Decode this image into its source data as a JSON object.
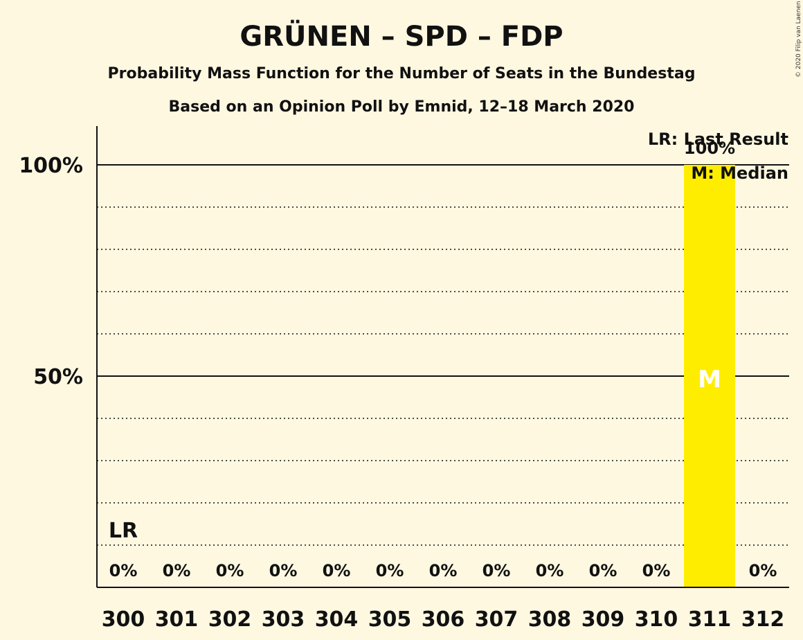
{
  "chart_data": {
    "type": "bar",
    "title": "GRÜNEN – SPD – FDP",
    "subtitle": "Probability Mass Function for the Number of Seats in the Bundestag",
    "subtitle2": "Based on an Opinion Poll by Emnid, 12–18 March 2020",
    "categories": [
      "300",
      "301",
      "302",
      "303",
      "304",
      "305",
      "306",
      "307",
      "308",
      "309",
      "310",
      "311",
      "312"
    ],
    "values": [
      0,
      0,
      0,
      0,
      0,
      0,
      0,
      0,
      0,
      0,
      0,
      100,
      0
    ],
    "value_labels": [
      "0%",
      "0%",
      "0%",
      "0%",
      "0%",
      "0%",
      "0%",
      "0%",
      "0%",
      "0%",
      "0%",
      "100%",
      "0%"
    ],
    "ylim": [
      0,
      100
    ],
    "yticks": [
      {
        "value": 50,
        "label": "50%"
      },
      {
        "value": 100,
        "label": "100%"
      }
    ],
    "minor_gridlines": [
      10,
      20,
      30,
      40,
      60,
      70,
      80,
      90
    ],
    "last_result_seat": "300",
    "last_result_marker": "LR",
    "median_seat": "311",
    "median_marker": "M",
    "legend": [
      "LR: Last Result",
      "M: Median"
    ],
    "legend_position": "top-right",
    "bar_color": "#FFED00",
    "background_color": "#FFF8E1",
    "copyright": "© 2020 Filip van Laenen"
  }
}
